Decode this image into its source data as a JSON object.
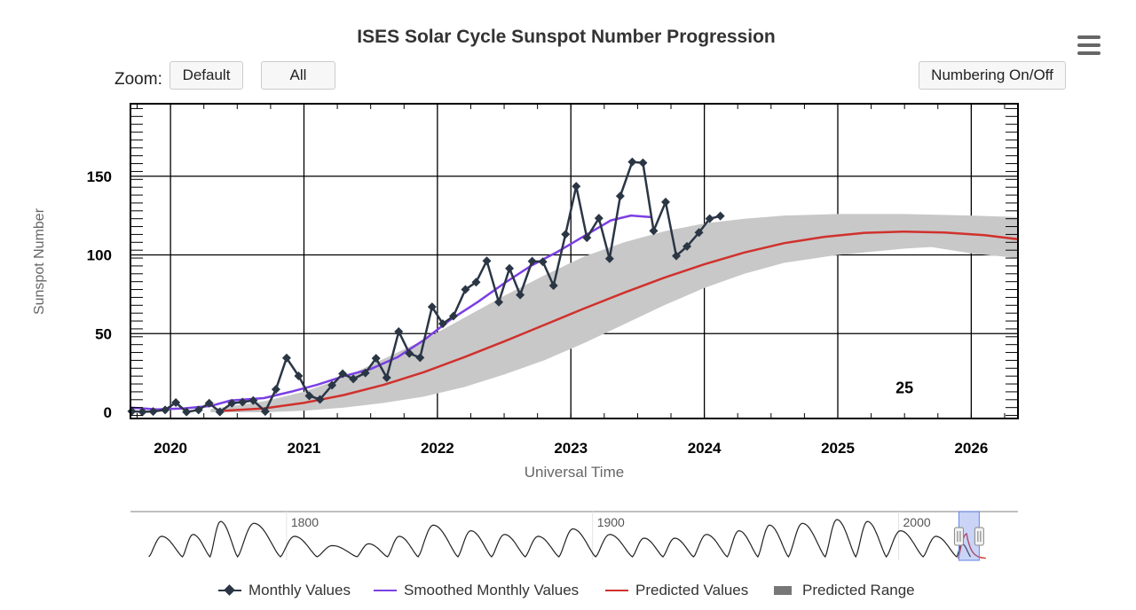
{
  "header": {
    "title": "ISES Solar Cycle Sunspot Number Progression",
    "zoom_label": "Zoom:",
    "zoom_buttons": [
      "Default",
      "All"
    ],
    "numbering_button": "Numbering On/Off",
    "menu_icon": "hamburger-menu-icon"
  },
  "chart_data": {
    "type": "line",
    "xlabel": "Universal Time",
    "ylabel": "Sunspot Number",
    "xlim": [
      2019.7,
      2026.35
    ],
    "ylim": [
      0,
      200
    ],
    "x_ticks": [
      "2020",
      "2021",
      "2022",
      "2023",
      "2024",
      "2025",
      "2026"
    ],
    "y_ticks": [
      "0",
      "50",
      "100",
      "150"
    ],
    "grid": true,
    "cycle_label": "25",
    "cycle_label_at": [
      2025.5,
      12
    ],
    "series": [
      {
        "name": "Monthly Values",
        "color": "#2b3645",
        "points": [
          [
            2019.71,
            0.6
          ],
          [
            2019.79,
            0.3
          ],
          [
            2019.87,
            0.5
          ],
          [
            2019.96,
            1.5
          ],
          [
            2020.04,
            6.2
          ],
          [
            2020.12,
            0.2
          ],
          [
            2020.21,
            1.5
          ],
          [
            2020.29,
            5.8
          ],
          [
            2020.37,
            0.2
          ],
          [
            2020.46,
            5.8
          ],
          [
            2020.54,
            6.5
          ],
          [
            2020.62,
            7.5
          ],
          [
            2020.71,
            0.5
          ],
          [
            2020.79,
            14.6
          ],
          [
            2020.87,
            34.5
          ],
          [
            2020.96,
            23.1
          ],
          [
            2021.04,
            10.4
          ],
          [
            2021.12,
            8.2
          ],
          [
            2021.21,
            17.2
          ],
          [
            2021.29,
            24.5
          ],
          [
            2021.37,
            21.2
          ],
          [
            2021.46,
            25.0
          ],
          [
            2021.54,
            34.3
          ],
          [
            2021.62,
            22.0
          ],
          [
            2021.71,
            51.3
          ],
          [
            2021.79,
            37.4
          ],
          [
            2021.87,
            34.7
          ],
          [
            2021.96,
            67.0
          ],
          [
            2022.04,
            56.3
          ],
          [
            2022.12,
            61.1
          ],
          [
            2022.21,
            78.0
          ],
          [
            2022.29,
            82.7
          ],
          [
            2022.37,
            96.2
          ],
          [
            2022.46,
            70.0
          ],
          [
            2022.54,
            91.4
          ],
          [
            2022.62,
            74.6
          ],
          [
            2022.71,
            96.0
          ],
          [
            2022.79,
            95.6
          ],
          [
            2022.87,
            80.5
          ],
          [
            2022.96,
            113.1
          ],
          [
            2023.04,
            143.6
          ],
          [
            2023.12,
            110.9
          ],
          [
            2023.21,
            123.3
          ],
          [
            2023.29,
            97.6
          ],
          [
            2023.37,
            137.4
          ],
          [
            2023.46,
            159.1
          ],
          [
            2023.54,
            158.5
          ],
          [
            2023.62,
            115.3
          ],
          [
            2023.71,
            133.6
          ],
          [
            2023.79,
            99.4
          ],
          [
            2023.87,
            105.4
          ],
          [
            2023.96,
            114.2
          ],
          [
            2024.04,
            123.0
          ],
          [
            2024.12,
            124.7
          ]
        ]
      },
      {
        "name": "Smoothed Monthly Values",
        "color": "#7b3fe4",
        "points": [
          [
            2019.7,
            3.0
          ],
          [
            2019.9,
            1.8
          ],
          [
            2020.1,
            2.5
          ],
          [
            2020.3,
            4.0
          ],
          [
            2020.45,
            7.5
          ],
          [
            2020.7,
            9.0
          ],
          [
            2020.9,
            13.0
          ],
          [
            2021.1,
            17.5
          ],
          [
            2021.3,
            23.0
          ],
          [
            2021.5,
            27.5
          ],
          [
            2021.7,
            35.0
          ],
          [
            2021.9,
            46.0
          ],
          [
            2022.1,
            59.0
          ],
          [
            2022.3,
            70.0
          ],
          [
            2022.5,
            82.0
          ],
          [
            2022.7,
            93.0
          ],
          [
            2022.9,
            102.0
          ],
          [
            2023.1,
            112.0
          ],
          [
            2023.3,
            122.0
          ],
          [
            2023.45,
            125.0
          ],
          [
            2023.6,
            124.0
          ]
        ]
      },
      {
        "name": "Predicted Values",
        "color": "#d0312d",
        "points": [
          [
            2020.4,
            1.0
          ],
          [
            2020.7,
            2.5
          ],
          [
            2021.0,
            6.0
          ],
          [
            2021.3,
            11.0
          ],
          [
            2021.6,
            17.5
          ],
          [
            2021.9,
            25.5
          ],
          [
            2022.2,
            35.0
          ],
          [
            2022.5,
            45.0
          ],
          [
            2022.8,
            55.5
          ],
          [
            2023.1,
            66.0
          ],
          [
            2023.4,
            76.0
          ],
          [
            2023.7,
            85.5
          ],
          [
            2024.0,
            94.0
          ],
          [
            2024.3,
            101.5
          ],
          [
            2024.6,
            107.5
          ],
          [
            2024.9,
            111.5
          ],
          [
            2025.2,
            114.0
          ],
          [
            2025.5,
            114.8
          ],
          [
            2025.8,
            114.2
          ],
          [
            2026.1,
            112.5
          ],
          [
            2026.35,
            110.0
          ]
        ]
      },
      {
        "name": "Predicted Range",
        "color": "#c8c8c8",
        "upper": [
          [
            2020.3,
            2
          ],
          [
            2020.7,
            7
          ],
          [
            2021.0,
            13
          ],
          [
            2021.3,
            22
          ],
          [
            2021.6,
            34
          ],
          [
            2021.9,
            46
          ],
          [
            2022.2,
            60
          ],
          [
            2022.5,
            74
          ],
          [
            2022.8,
            87
          ],
          [
            2023.1,
            99
          ],
          [
            2023.4,
            108
          ],
          [
            2023.7,
            115
          ],
          [
            2024.0,
            120
          ],
          [
            2024.3,
            123
          ],
          [
            2024.6,
            125
          ],
          [
            2025.0,
            126
          ],
          [
            2025.5,
            126
          ],
          [
            2026.0,
            125
          ],
          [
            2026.35,
            124
          ]
        ],
        "lower": [
          [
            2020.3,
            0
          ],
          [
            2020.7,
            0
          ],
          [
            2021.0,
            1
          ],
          [
            2021.3,
            3
          ],
          [
            2021.6,
            6
          ],
          [
            2021.9,
            10
          ],
          [
            2022.2,
            16
          ],
          [
            2022.5,
            24
          ],
          [
            2022.8,
            33
          ],
          [
            2023.1,
            44
          ],
          [
            2023.4,
            56
          ],
          [
            2023.7,
            68
          ],
          [
            2024.0,
            79
          ],
          [
            2024.3,
            88
          ],
          [
            2024.6,
            95
          ],
          [
            2025.0,
            100
          ],
          [
            2025.5,
            104
          ],
          [
            2025.7,
            105
          ],
          [
            2026.0,
            101
          ],
          [
            2026.35,
            98
          ]
        ]
      }
    ],
    "navigator": {
      "labels": [
        "1800",
        "1900",
        "2000"
      ],
      "label_years": [
        1800,
        1900,
        2000
      ]
    }
  },
  "legend": {
    "items": [
      "Monthly Values",
      "Smoothed Monthly Values",
      "Predicted Values",
      "Predicted Range"
    ]
  }
}
